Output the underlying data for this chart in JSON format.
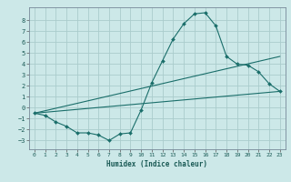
{
  "xlabel": "Humidex (Indice chaleur)",
  "bg_color": "#cce8e8",
  "grid_color": "#aacccc",
  "line_color": "#1a6e6a",
  "xlim": [
    -0.5,
    23.5
  ],
  "ylim": [
    -3.8,
    9.2
  ],
  "yticks": [
    -3,
    -2,
    -1,
    0,
    1,
    2,
    3,
    4,
    5,
    6,
    7,
    8
  ],
  "xticks": [
    0,
    1,
    2,
    3,
    4,
    5,
    6,
    7,
    8,
    9,
    10,
    11,
    12,
    13,
    14,
    15,
    16,
    17,
    18,
    19,
    20,
    21,
    22,
    23
  ],
  "line1_x": [
    0,
    1,
    2,
    3,
    4,
    5,
    6,
    7,
    8,
    9,
    10,
    11,
    12,
    13,
    14,
    15,
    16,
    17,
    18,
    19,
    20,
    21,
    22,
    23
  ],
  "line1_y": [
    -0.5,
    -0.7,
    -1.3,
    -1.7,
    -2.3,
    -2.3,
    -2.5,
    -3.0,
    -2.4,
    -2.3,
    -0.2,
    2.3,
    4.3,
    6.3,
    7.7,
    8.6,
    8.7,
    7.5,
    4.7,
    4.0,
    3.9,
    3.3,
    2.2,
    1.5
  ],
  "line2_x": [
    0,
    23
  ],
  "line2_y": [
    -0.5,
    1.5
  ],
  "line3_x": [
    0,
    23
  ],
  "line3_y": [
    -0.5,
    4.7
  ]
}
